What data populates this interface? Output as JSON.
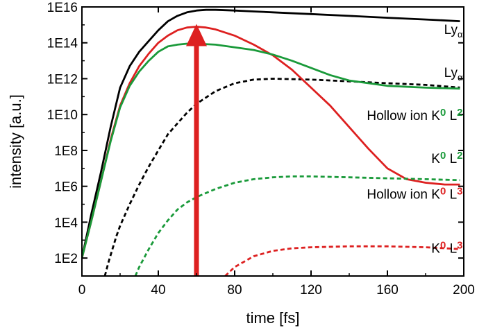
{
  "chart_data": {
    "type": "line",
    "xlabel": "time [fs]",
    "ylabel": "intensity [a.u.]",
    "xlim": [
      0,
      200
    ],
    "ylim_log10": [
      1,
      16
    ],
    "y_scale": "log",
    "grid": false,
    "legend": "none",
    "x_ticks": [
      "0",
      "40",
      "80",
      "120",
      "160",
      "200"
    ],
    "y_ticks": [
      "1E2",
      "1E4",
      "1E6",
      "1E8",
      "1E10",
      "1E12",
      "1E14",
      "1E16"
    ],
    "series": [
      {
        "color": "#000000",
        "dashed": false,
        "x": [
          0,
          5,
          10,
          15,
          20,
          25,
          30,
          35,
          40,
          45,
          50,
          55,
          60,
          65,
          70,
          80,
          90,
          100,
          120,
          140,
          160,
          180,
          198
        ],
        "y": [
          100.0,
          31600.0,
          6300000.0,
          2000000000.0,
          316000000000.0,
          5000000000000.0,
          31600000000000.0,
          126000000000000.0,
          500000000000000.0,
          1580000000000000.0,
          3160000000000000.0,
          5000000000000000.0,
          6300000000000000.0,
          6900000000000000.0,
          6900000000000000.0,
          6300000000000000.0,
          5600000000000000.0,
          5000000000000000.0,
          4000000000000000.0,
          3160000000000000.0,
          2500000000000000.0,
          2000000000000000.0,
          1600000000000000.0
        ]
      },
      {
        "color": "#000000",
        "dashed": true,
        "x": [
          12,
          14,
          16,
          18,
          20,
          25,
          30,
          35,
          40,
          45,
          50,
          55,
          60,
          70,
          80,
          90,
          100,
          120,
          140,
          160,
          180,
          198
        ],
        "y": [
          10.0,
          63.0,
          320.0,
          1600.0,
          6300.0,
          100000.0,
          1260000.0,
          12600000.0,
          100000000.0,
          790000000.0,
          3200000000.0,
          12600000000.0,
          39800000000.0,
          200000000000.0,
          560000000000.0,
          890000000000.0,
          1000000000000.0,
          890000000000.0,
          710000000000.0,
          560000000000.0,
          450000000000.0,
          320000000000.0
        ]
      },
      {
        "color": "#dd2020",
        "dashed": false,
        "x": [
          0,
          5,
          10,
          15,
          20,
          25,
          30,
          35,
          40,
          45,
          50,
          55,
          60,
          65,
          70,
          80,
          90,
          100,
          110,
          120,
          130,
          140,
          150,
          160,
          170,
          180,
          190,
          198
        ],
        "y": [
          100.0,
          12600.0,
          2000000.0,
          398000000.0,
          31600000000.0,
          560000000000.0,
          5000000000000.0,
          25000000000000.0,
          100000000000000.0,
          250000000000000.0,
          500000000000000.0,
          710000000000000.0,
          790000000000000.0,
          710000000000000.0,
          560000000000000.0,
          250000000000000.0,
          79000000000000.0,
          20000000000000.0,
          3160000000000.0,
          316000000000.0,
          31600000000.0,
          2000000000.0,
          126000000.0,
          10000000.0,
          2500000.0,
          1580000.0,
          1260000.0,
          1260000.0
        ]
      },
      {
        "color": "#dd2020",
        "dashed": true,
        "x": [
          75,
          80,
          90,
          100,
          110,
          120,
          140,
          160,
          180,
          198
        ],
        "y": [
          10.0,
          31.6,
          126.0,
          250.0,
          350.0,
          400.0,
          450.0,
          450.0,
          400.0,
          316.0
        ]
      },
      {
        "color": "#1a9a3a",
        "dashed": false,
        "x": [
          0,
          5,
          10,
          15,
          20,
          25,
          30,
          35,
          40,
          45,
          50,
          55,
          60,
          70,
          80,
          90,
          100,
          110,
          120,
          130,
          140,
          160,
          180,
          198
        ],
        "y": [
          100.0,
          12600.0,
          2000000.0,
          316000000.0,
          25000000000.0,
          398000000000.0,
          2500000000000.0,
          10000000000000.0,
          31600000000000.0,
          63000000000000.0,
          79000000000000.0,
          89000000000000.0,
          89000000000000.0,
          79000000000000.0,
          56000000000000.0,
          39800000000000.0,
          22000000000000.0,
          10000000000000.0,
          3980000000000.0,
          1580000000000.0,
          790000000000.0,
          398000000000.0,
          316000000000.0,
          280000000000.0
        ]
      },
      {
        "color": "#1a9a3a",
        "dashed": true,
        "x": [
          28,
          30,
          35,
          40,
          45,
          50,
          55,
          60,
          70,
          80,
          90,
          100,
          110,
          120,
          140,
          160,
          180,
          198
        ],
        "y": [
          10.0,
          31.6,
          316.0,
          2500.0,
          12600.0,
          50000.0,
          126000.0,
          250000.0,
          710000.0,
          1580000.0,
          2500000.0,
          3160000.0,
          3550000.0,
          3550000.0,
          3160000.0,
          2800000.0,
          2500000.0,
          2200000.0
        ]
      }
    ],
    "arrow": {
      "x": 60,
      "y_from": 10.0,
      "y_to": 790000000000000.0,
      "color": "#dd2020"
    },
    "annotations": [
      {
        "parts": [
          {
            "t": "Ly",
            "c": "#000000"
          },
          {
            "t": "α",
            "c": "#000000",
            "k": "sub"
          }
        ],
        "x": 198,
        "y": 316000000000000.0
      },
      {
        "parts": [
          {
            "t": "Ly",
            "c": "#000000"
          },
          {
            "t": "α",
            "c": "#000000",
            "k": "sub"
          }
        ],
        "x": 198,
        "y": 1260000000000.0
      },
      {
        "parts": [
          {
            "t": "Hollow  ion  K",
            "c": "#000000"
          },
          {
            "t": "0",
            "c": "#1a9a3a",
            "k": "sup"
          },
          {
            "t": " L",
            "c": "#000000"
          },
          {
            "t": "2",
            "c": "#1a9a3a",
            "k": "sup"
          }
        ],
        "x": 198,
        "y": 5000000000.0
      },
      {
        "parts": [
          {
            "t": "K",
            "c": "#000000"
          },
          {
            "t": "0",
            "c": "#1a9a3a",
            "k": "sup"
          },
          {
            "t": " L",
            "c": "#000000"
          },
          {
            "t": "2",
            "c": "#1a9a3a",
            "k": "sup"
          }
        ],
        "x": 198,
        "y": 20000000.0
      },
      {
        "parts": [
          {
            "t": "Hollow  ion  K",
            "c": "#000000"
          },
          {
            "t": "0",
            "c": "#dd2020",
            "k": "sup"
          },
          {
            "t": " L",
            "c": "#000000"
          },
          {
            "t": "3",
            "c": "#dd2020",
            "k": "sup"
          }
        ],
        "x": 198,
        "y": 200000.0
      },
      {
        "parts": [
          {
            "t": "K",
            "c": "#000000"
          },
          {
            "t": "0",
            "c": "#dd2020",
            "k": "sup"
          },
          {
            "t": " L",
            "c": "#000000"
          },
          {
            "t": "3",
            "c": "#dd2020",
            "k": "sup"
          }
        ],
        "x": 198,
        "y": 200.0
      }
    ]
  }
}
